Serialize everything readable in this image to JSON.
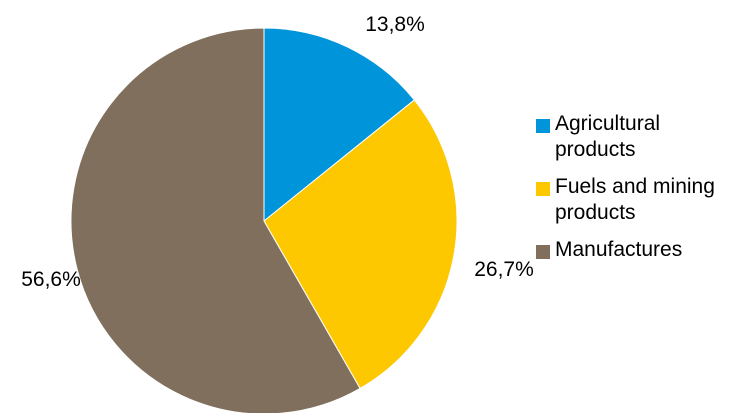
{
  "chart_data": {
    "type": "pie",
    "categories": [
      "Agricultural products",
      "Fuels and mining products",
      "Manufactures"
    ],
    "values": [
      13.8,
      26.7,
      56.6
    ],
    "data_labels": [
      "13,8%",
      "26,7%",
      "56,6%"
    ],
    "colors": [
      "#0095da",
      "#fdc800",
      "#7f6f5c"
    ],
    "title": "",
    "legend_placement": "right",
    "start_angle": "12 o'clock, clockwise"
  },
  "legend": {
    "items": [
      {
        "label": "Agricultural products",
        "color": "#0095da"
      },
      {
        "label": "Fuels and mining products",
        "color": "#fdc800"
      },
      {
        "label": "Manufactures",
        "color": "#7f6f5c"
      }
    ]
  }
}
